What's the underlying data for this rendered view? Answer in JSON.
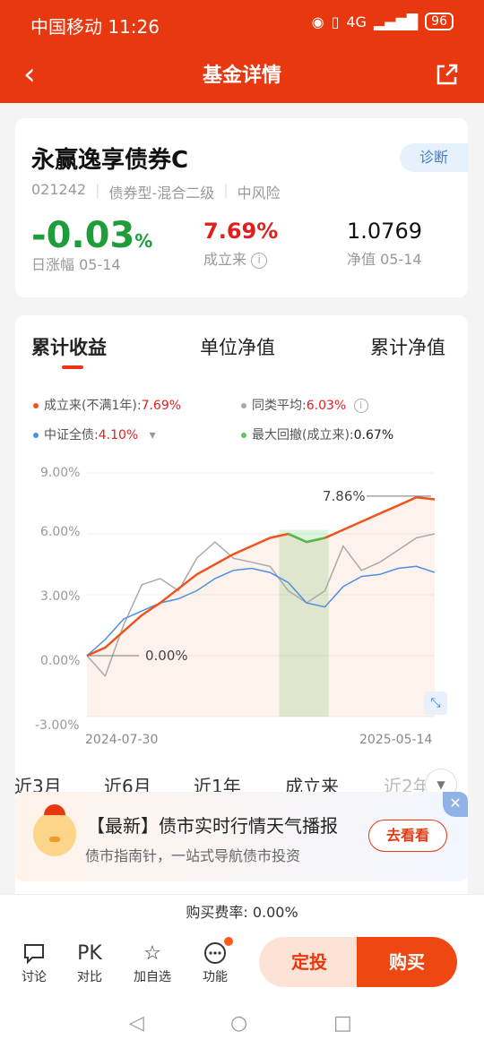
{
  "status": {
    "carrier_time": "中国移动 11:26",
    "battery": "96",
    "net": "4G"
  },
  "nav": {
    "title": "基金详情"
  },
  "fund": {
    "name": "永赢逸享债券C",
    "diagnose_label": "诊断",
    "code": "021242",
    "type": "债券型-混合二级",
    "risk": "中风险",
    "daily_change": "-0.03",
    "daily_change_unit": "%",
    "daily_change_label": "日涨幅 05-14",
    "since_inception": "7.69%",
    "since_inception_label": "成立来",
    "nav_value": "1.0769",
    "nav_label": "净值 05-14"
  },
  "chart_tabs": [
    "累计收益",
    "单位净值",
    "累计净值"
  ],
  "legend": {
    "l1_label": "成立来(不满1年):",
    "l1_value": "7.69%",
    "l2_label": "同类平均:",
    "l2_value": "6.03%",
    "l3_label": "中证全债:",
    "l3_value": "4.10%",
    "l4_label": "最大回撤(成立来):",
    "l4_value": "0.67%"
  },
  "chart_data": {
    "type": "line",
    "y_ticks": [
      "9.00%",
      "6.00%",
      "3.00%",
      "0.00%",
      "-3.00%"
    ],
    "ylim": [
      -3,
      9
    ],
    "x_start": "2024-07-30",
    "x_end": "2025-05-14",
    "annotations": {
      "max": "7.86%",
      "start": "0.00%"
    },
    "series": [
      {
        "name": "成立来",
        "color": "#f0541e",
        "values": [
          0,
          0.4,
          1.2,
          2.0,
          2.6,
          3.3,
          4.0,
          4.5,
          5.0,
          5.4,
          5.8,
          6.0,
          5.6,
          5.8,
          6.2,
          6.6,
          7.0,
          7.4,
          7.8,
          7.7
        ]
      },
      {
        "name": "同类平均",
        "color": "#a9a9a9",
        "values": [
          0,
          -1.0,
          1.5,
          3.5,
          3.8,
          3.2,
          4.8,
          5.6,
          4.8,
          4.6,
          4.4,
          3.2,
          2.6,
          3.2,
          5.4,
          4.2,
          4.6,
          5.2,
          5.8,
          6.0
        ]
      },
      {
        "name": "中证全债",
        "color": "#4a90e2",
        "values": [
          0,
          0.8,
          1.8,
          2.2,
          2.6,
          2.8,
          3.2,
          3.8,
          4.2,
          4.3,
          4.1,
          3.6,
          2.6,
          2.4,
          3.4,
          3.9,
          4.0,
          4.3,
          4.4,
          4.1
        ]
      }
    ],
    "max_drawdown_label": "最大回撤(成立来)",
    "max_drawdown": "0.67%",
    "legend_placement": "top"
  },
  "period_tabs": [
    "近3月",
    "近6月",
    "近1年",
    "成立来",
    "近2年"
  ],
  "promo": {
    "title": "【最新】债市实时行情天气播报",
    "subtitle": "债市指南针，一站式导航债市投资",
    "button": "去看看",
    "close": "✕"
  },
  "fee": "购买费率: 0.00%",
  "bottom": {
    "discuss": "讨论",
    "pk_icon": "PK",
    "pk": "对比",
    "watch": "加自选",
    "function": "功能",
    "dingtou": "定投",
    "buy": "购买"
  }
}
